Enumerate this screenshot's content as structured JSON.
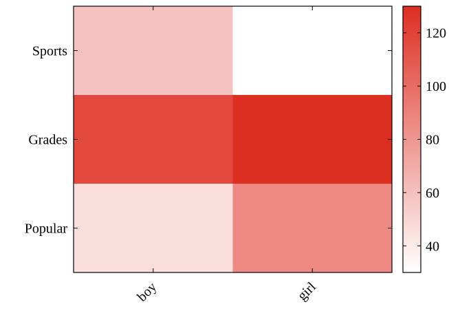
{
  "chart_data": {
    "type": "heatmap",
    "title": "",
    "xlabel": "",
    "ylabel": "",
    "x_categories": [
      "boy",
      "girl"
    ],
    "y_categories": [
      "Sports",
      "Grades",
      "Popular"
    ],
    "values": [
      [
        59,
        30
      ],
      [
        117,
        130
      ],
      [
        46,
        86
      ]
    ],
    "colorbar": {
      "range": [
        30,
        130
      ],
      "ticks": [
        "40",
        "60",
        "80",
        "100",
        "120"
      ],
      "tick_values": [
        40,
        60,
        80,
        100,
        120
      ],
      "colormap": [
        "#ffffff",
        "#dd2e22"
      ]
    },
    "grid": false
  }
}
